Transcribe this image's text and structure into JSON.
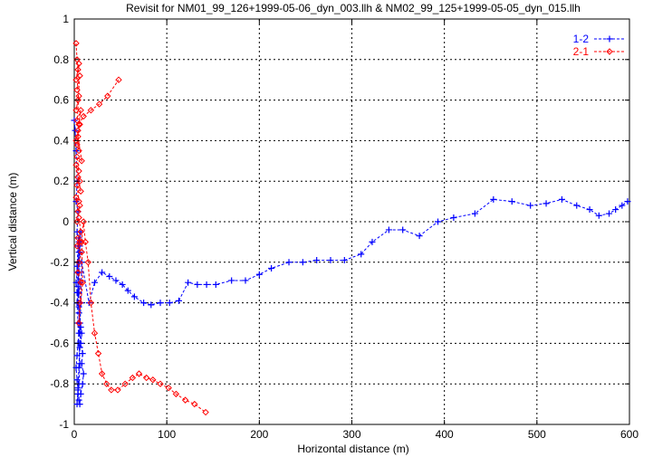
{
  "chart_data": {
    "type": "line",
    "title": "Revisit for NM01_99_126+1999-05-06_dyn_003.llh & NM02_99_125+1999-05-05_dyn_015.llh",
    "xlabel": "Horizontal distance (m)",
    "ylabel": "Vertical distance (m)",
    "xlim": [
      0,
      600
    ],
    "ylim": [
      -1,
      1
    ],
    "xticks": [
      0,
      100,
      200,
      300,
      400,
      500,
      600
    ],
    "yticks": [
      -1,
      -0.8,
      -0.6,
      -0.4,
      -0.2,
      0,
      0.2,
      0.4,
      0.6,
      0.8,
      1
    ],
    "xtick_labels": [
      "0",
      "100",
      "200",
      "300",
      "400",
      "500",
      "600"
    ],
    "ytick_labels": [
      "-1",
      "-0.8",
      "-0.6",
      "-0.4",
      "-0.2",
      "0",
      "0.2",
      "0.4",
      "0.6",
      "0.8",
      "1"
    ],
    "grid": true,
    "legend_position": "top-right",
    "series": [
      {
        "name": "1-2",
        "color": "#0000ff",
        "marker": "plus",
        "line": "dashed",
        "x": [
          0,
          1,
          2,
          3,
          2,
          4,
          3,
          5,
          4,
          6,
          5,
          7,
          6,
          8,
          7,
          9,
          8,
          10,
          9,
          7,
          6,
          5,
          4,
          3,
          2,
          3,
          4,
          5,
          6,
          5,
          4,
          3,
          2,
          3,
          4,
          5,
          6,
          7,
          6,
          5,
          4,
          3,
          4,
          5,
          6,
          5,
          4,
          3,
          4,
          5,
          6,
          7,
          5,
          4,
          3,
          4,
          5,
          6,
          5,
          4,
          5,
          6,
          7,
          8,
          16,
          22,
          30,
          38,
          45,
          52,
          58,
          65,
          75,
          83,
          93,
          103,
          113,
          123,
          133,
          143,
          153,
          170,
          185,
          200,
          213,
          232,
          247,
          262,
          277,
          292,
          310,
          322,
          340,
          355,
          373,
          393,
          410,
          433,
          453,
          473,
          493,
          510,
          527,
          543,
          557,
          567,
          578,
          585,
          592,
          598
        ],
        "y": [
          0.5,
          0.45,
          0.35,
          0.2,
          0.1,
          0.05,
          -0.05,
          -0.1,
          -0.2,
          -0.3,
          -0.35,
          -0.4,
          -0.5,
          -0.55,
          -0.6,
          -0.65,
          -0.7,
          -0.75,
          -0.8,
          -0.85,
          -0.9,
          -0.88,
          -0.83,
          -0.78,
          -0.72,
          -0.66,
          -0.6,
          -0.55,
          -0.5,
          -0.45,
          -0.4,
          -0.35,
          -0.3,
          -0.25,
          -0.2,
          -0.15,
          -0.1,
          -0.05,
          -0.12,
          -0.2,
          -0.3,
          -0.4,
          -0.5,
          -0.6,
          -0.7,
          -0.8,
          -0.85,
          -0.9,
          -0.82,
          -0.72,
          -0.62,
          -0.52,
          -0.42,
          -0.32,
          -0.22,
          -0.12,
          -0.08,
          -0.15,
          -0.25,
          -0.35,
          -0.45,
          -0.55,
          -0.4,
          -0.2,
          -0.4,
          -0.3,
          -0.25,
          -0.27,
          -0.29,
          -0.31,
          -0.34,
          -0.37,
          -0.4,
          -0.41,
          -0.4,
          -0.4,
          -0.39,
          -0.3,
          -0.31,
          -0.31,
          -0.31,
          -0.29,
          -0.29,
          -0.26,
          -0.23,
          -0.2,
          -0.2,
          -0.19,
          -0.19,
          -0.19,
          -0.16,
          -0.1,
          -0.04,
          -0.04,
          -0.07,
          0.0,
          0.02,
          0.04,
          0.11,
          0.1,
          0.08,
          0.09,
          0.11,
          0.08,
          0.06,
          0.03,
          0.04,
          0.06,
          0.08,
          0.1
        ]
      },
      {
        "name": "2-1",
        "color": "#ff0000",
        "marker": "diamond",
        "line": "dashed",
        "x": [
          2,
          3,
          4,
          2,
          5,
          3,
          6,
          4,
          2,
          5,
          3,
          7,
          4,
          2,
          6,
          3,
          5,
          4,
          8,
          3,
          5,
          2,
          6,
          4,
          7,
          3,
          5,
          2,
          4,
          6,
          3,
          5,
          7,
          4,
          6,
          3,
          8,
          5,
          4,
          7,
          6,
          5,
          9,
          8,
          10,
          12,
          15,
          18,
          22,
          26,
          30,
          35,
          40,
          47,
          55,
          63,
          70,
          78,
          85,
          93,
          102,
          110,
          120,
          130,
          142
        ],
        "y": [
          0.88,
          0.8,
          0.75,
          0.7,
          0.78,
          0.65,
          0.72,
          0.6,
          0.55,
          0.62,
          0.5,
          0.55,
          0.45,
          0.4,
          0.48,
          0.38,
          0.35,
          0.42,
          0.3,
          0.32,
          0.25,
          0.28,
          0.2,
          0.22,
          0.15,
          0.18,
          0.1,
          0.12,
          0.05,
          0.08,
          0.0,
          0.02,
          -0.05,
          -0.08,
          -0.1,
          -0.12,
          -0.15,
          -0.2,
          -0.25,
          -0.3,
          -0.4,
          -0.5,
          -0.3,
          -0.1,
          0.0,
          -0.1,
          -0.2,
          -0.4,
          -0.55,
          -0.65,
          -0.75,
          -0.8,
          -0.83,
          -0.83,
          -0.8,
          -0.77,
          -0.75,
          -0.77,
          -0.78,
          -0.8,
          -0.82,
          -0.85,
          -0.88,
          -0.9,
          -0.94
        ]
      },
      {
        "name": "",
        "color": "#ff0000",
        "marker": "diamond",
        "line": "dashed",
        "x": [
          5,
          10,
          18,
          27,
          36,
          48
        ],
        "y": [
          0.48,
          0.52,
          0.55,
          0.58,
          0.62,
          0.7
        ]
      }
    ]
  }
}
